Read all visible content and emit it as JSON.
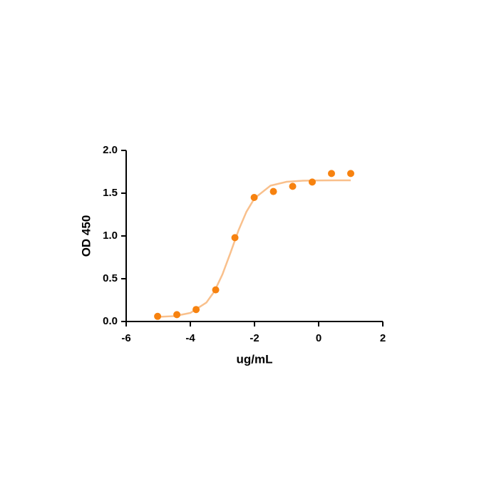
{
  "chart_data": {
    "type": "scatter",
    "x_label": "ug/mL",
    "y_label": "OD 450",
    "series": [
      {
        "color": "#f7820f",
        "x": [
          -5.02,
          -4.42,
          -3.82,
          -3.21,
          -2.61,
          -2.01,
          -1.41,
          -0.81,
          -0.2,
          0.4,
          1.0
        ],
        "values": [
          0.06,
          0.08,
          0.14,
          0.37,
          0.98,
          1.45,
          1.52,
          1.58,
          1.63,
          1.73,
          1.73
        ]
      },
      {
        "color": "#f9c08c",
        "line": true,
        "x": [
          -5,
          -4.5,
          -4,
          -3.5,
          -3.25,
          -3,
          -2.75,
          -2.5,
          -2.25,
          -2,
          -1.5,
          -1,
          -0.5,
          0,
          0.5,
          1
        ],
        "values": [
          0.054,
          0.063,
          0.1,
          0.221,
          0.352,
          0.55,
          0.802,
          1.064,
          1.284,
          1.44,
          1.588,
          1.633,
          1.646,
          1.649,
          1.65,
          1.65
        ]
      }
    ],
    "xlim": [
      -6,
      2
    ],
    "xticks": [
      -6,
      -4,
      -2,
      0,
      2
    ],
    "ylim": [
      0,
      2
    ],
    "yticks": [
      {
        "value": 0,
        "label": "0.0"
      },
      {
        "value": 0.5,
        "label": "0.5"
      },
      {
        "value": 1,
        "label": "1.0"
      },
      {
        "value": 1.5,
        "label": "1.5"
      },
      {
        "value": 2,
        "label": "2.0"
      }
    ]
  }
}
